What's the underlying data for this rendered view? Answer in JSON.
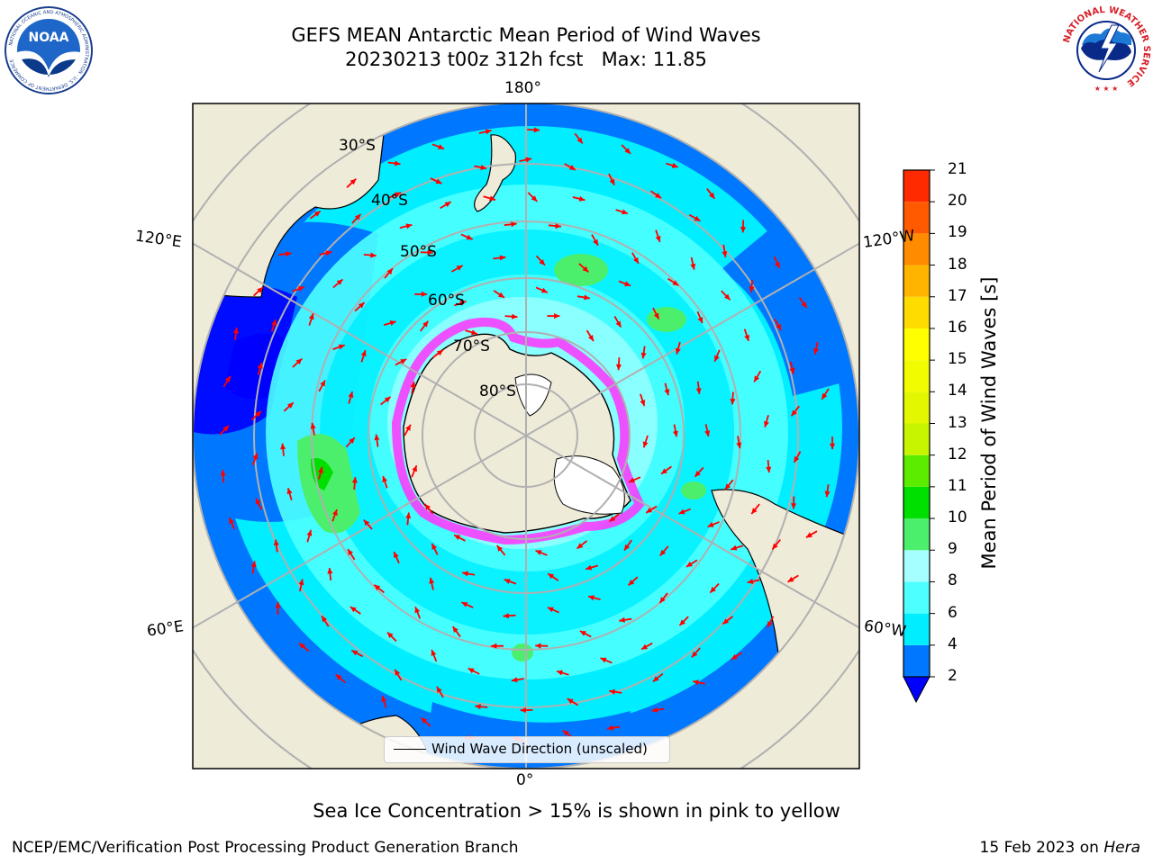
{
  "title": {
    "line1": "GEFS MEAN Antarctic Mean Period of Wind Waves",
    "line2": "20230213 t00z 312h fcst   Max: 11.85"
  },
  "logos": {
    "noaa": "NOAA",
    "noaa_ring": "NATIONAL OCEANIC AND ATMOSPHERIC ADMINISTRATION · U.S. DEPARTMENT OF COMMERCE",
    "nws_ring": "NATIONAL WEATHER SERVICE"
  },
  "map": {
    "projection": "south-polar-stereographic",
    "lon_labels": {
      "top": "180°",
      "bottom": "0°",
      "upper_left": "120°E",
      "upper_right": "120°W",
      "lower_left": "60°E",
      "lower_right": "60°W"
    },
    "lat_labels": [
      "30°S",
      "40°S",
      "50°S",
      "60°S",
      "70°S",
      "80°S"
    ],
    "legend_label": "Wind Wave Direction (unscaled)",
    "colors": {
      "land": "#efebd9",
      "ocean_dark": "#0000ff",
      "ocean_blue": "#0077ff",
      "ocean_cyan": "#00eeff",
      "ocean_light": "#66ffff",
      "green": "#4cef6b",
      "ice_pink": "#ff33ff",
      "arrows": "#ff0000",
      "grid": "#b0b0b0"
    }
  },
  "colorbar": {
    "title": "Mean Period of Wind Waves [s]",
    "ticks": [
      "2",
      "4",
      "6",
      "8",
      "9",
      "10",
      "11",
      "12",
      "13",
      "14",
      "15",
      "16",
      "17",
      "18",
      "19",
      "20",
      "21"
    ],
    "colors": [
      "#0077ff",
      "#00eeff",
      "#4dffff",
      "#a6ffff",
      "#4cef6b",
      "#00e000",
      "#5cec00",
      "#c7f500",
      "#e3f800",
      "#f2fc00",
      "#ffff00",
      "#ffdc00",
      "#ffb500",
      "#ff8c00",
      "#ff5a00",
      "#ff2a00",
      "#ff0000"
    ],
    "under_color": "#0000ff",
    "min": 2,
    "max": 21,
    "extend": "min"
  },
  "footer": {
    "note": "Sea Ice Concentration > 15% is shown in pink to yellow",
    "left": "NCEP/EMC/Verification Post Processing Product Generation Branch",
    "right_prefix": "15 Feb 2023 on ",
    "right_italic": "Hera"
  }
}
